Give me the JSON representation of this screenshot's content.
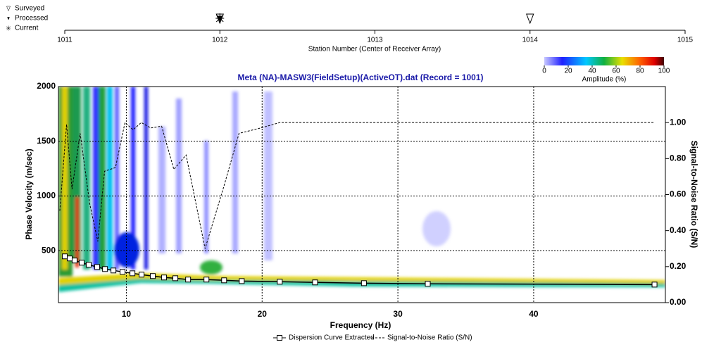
{
  "chart_data": [
    {
      "type": "scatter",
      "xlabel": "Station Number (Center of Receiver Array)",
      "xlim": [
        1011,
        1015
      ],
      "xticks": [
        1011,
        1012,
        1013,
        1014,
        1015
      ],
      "series": [
        {
          "name": "Surveyed",
          "x": [
            1012,
            1014
          ]
        },
        {
          "name": "Processed",
          "x": [
            1012
          ]
        },
        {
          "name": "Current",
          "x": [
            1012
          ]
        }
      ]
    },
    {
      "type": "line",
      "title": "Meta (NA)-MASW3(FieldSetup)(ActiveOT).dat (Record = 1001)",
      "xlabel": "Frequency (Hz)",
      "ylabel": "Phase Velocity (m/sec)",
      "y2label": "Signal-to-Noise Ratio (S/N)",
      "xlim": [
        5,
        49.7
      ],
      "xticks": [
        10,
        20,
        30,
        40
      ],
      "ylim": [
        25,
        2000
      ],
      "yticks": [
        500,
        1000,
        1500,
        2000
      ],
      "y2lim": [
        0,
        1.2
      ],
      "y2ticks": [
        {
          "value": 0,
          "label": "0.00"
        },
        {
          "value": 0.2,
          "label": "0.20"
        },
        {
          "value": 0.4,
          "label": "0.40"
        },
        {
          "value": 0.6,
          "label": "0.60"
        },
        {
          "value": 0.8,
          "label": "0.80"
        },
        {
          "value": 1,
          "label": "1.00"
        }
      ],
      "grid": true,
      "colorbar": {
        "label": "Amplitude (%)",
        "lim": [
          0,
          100
        ],
        "ticks": [
          0,
          20,
          40,
          60,
          80,
          100
        ]
      },
      "series": [
        {
          "name": "Dispersion Curve Extracted",
          "color": "#000000",
          "x": [
            5.47,
            5.83,
            6.19,
            6.71,
            7.23,
            7.85,
            8.43,
            9.05,
            9.72,
            10.45,
            11.12,
            11.95,
            12.78,
            13.61,
            14.55,
            15.9,
            17.2,
            18.5,
            21.3,
            23.9,
            27.5,
            32.2,
            48.9
          ],
          "values": [
            448,
            429,
            410,
            390,
            371,
            351,
            332,
            319,
            306,
            293,
            281,
            268,
            255,
            248,
            236,
            236,
            229,
            222,
            216,
            210,
            203,
            197,
            190
          ]
        },
        {
          "name": "Signal-to-Noise Ratio (S/N)",
          "color": "#000000",
          "axis": "y2",
          "x": [
            5.1,
            5.6,
            6.0,
            6.6,
            7.3,
            7.9,
            8.4,
            9.2,
            9.9,
            10.5,
            11.1,
            11.8,
            12.6,
            13.5,
            14.4,
            15.8,
            17.2,
            18.3,
            19.9,
            21.3,
            48.9
          ],
          "values": [
            0.51,
            0.99,
            0.63,
            0.94,
            0.55,
            0.34,
            0.73,
            0.75,
            1.0,
            0.96,
            1.0,
            0.97,
            0.98,
            0.74,
            0.82,
            0.3,
            0.65,
            0.94,
            0.97,
            1.0,
            1.0
          ]
        }
      ]
    }
  ]
}
